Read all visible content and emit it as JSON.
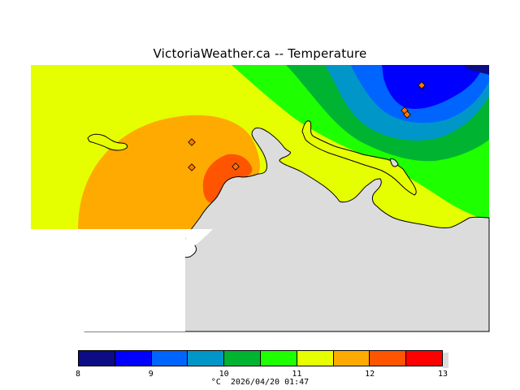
{
  "title": "VictoriaWeather.ca -- Temperature",
  "legend": {
    "ticks": [
      "8",
      "9",
      "10",
      "11",
      "12",
      "13"
    ],
    "colors": [
      "#0c0c84",
      "#0000ff",
      "#0064ff",
      "#0096c8",
      "#00b432",
      "#1eff00",
      "#e6ff00",
      "#ffaa00",
      "#ff5500",
      "#ff0000"
    ],
    "unit": "°C",
    "timestamp": "2026/04/20 01:47"
  },
  "land_color": "#dcdcdc",
  "station_markers": [
    "station-marker-1",
    "station-marker-2",
    "station-marker-3",
    "station-marker-4",
    "station-marker-5"
  ]
}
